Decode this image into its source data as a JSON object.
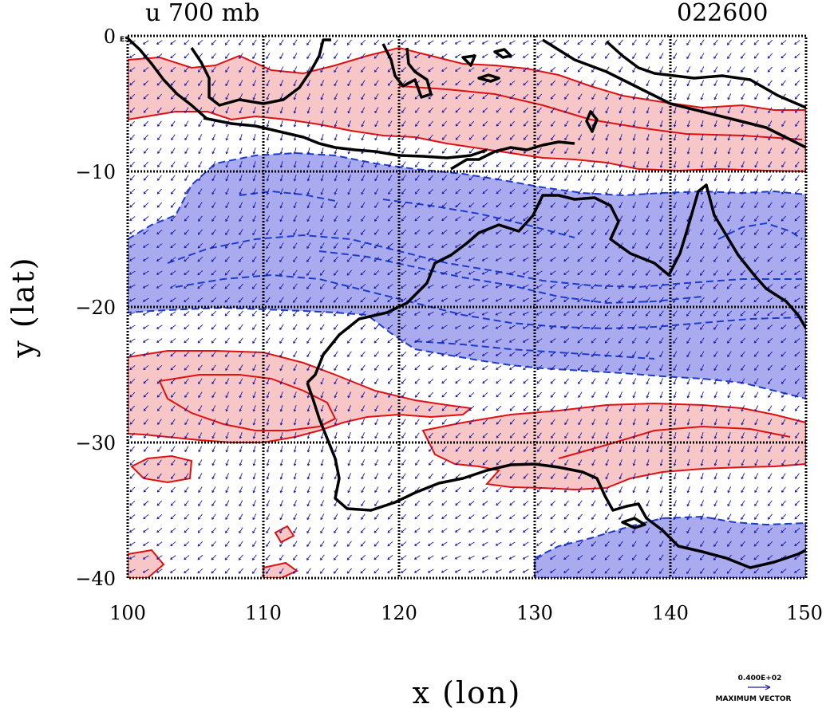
{
  "map": {
    "title_left": "u 700 mb",
    "title_right": "022600",
    "x_label": "x (lon)",
    "y_label": "y (lat)",
    "x_ticks": [
      "100",
      "110",
      "120",
      "130",
      "140",
      "150"
    ],
    "y_ticks": [
      "0",
      "−10",
      "−20",
      "−30",
      "−40"
    ],
    "corner_tag": "ES",
    "vector_scale": "0.400E+02",
    "vector_label": "MAXIMUM VECTOR",
    "extent": {
      "lon_min": 100,
      "lon_max": 150,
      "lat_min": -40,
      "lat_max": 0
    },
    "colors": {
      "positive_fill": "#f7c6c6",
      "positive_contour": "#e01010",
      "negative_fill": "#aaaaee",
      "negative_contour": "#1a3ccc",
      "vector": "#1a1aaa",
      "coastline": "#000000",
      "grid": "#000000"
    }
  }
}
